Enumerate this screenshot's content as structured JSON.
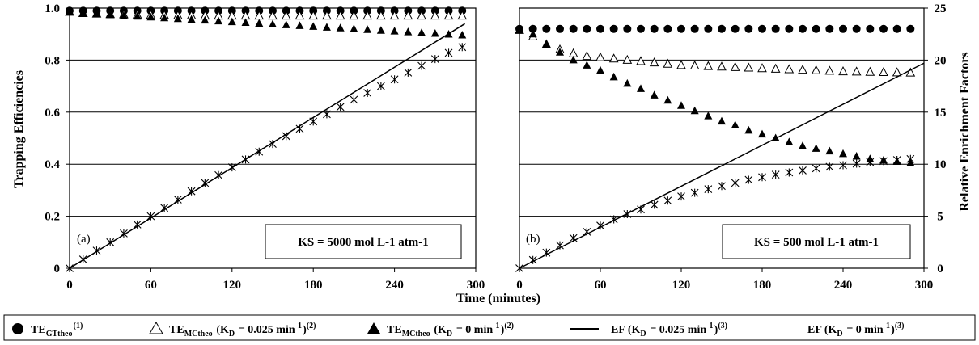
{
  "xlabel": "Time (minutes)",
  "ylabel_left": "Trapping Efficiencies",
  "ylabel_right": "Relative Enrichment Factors",
  "legend": [
    {
      "symbol": "filled-circle",
      "main": "TE",
      "sub": "GTtheo",
      "sup": "(1)",
      "rest": ""
    },
    {
      "symbol": "open-triangle",
      "main": "TE",
      "sub": "MCtheo",
      "rest": " (K",
      "sub2": "D",
      "rest2": " = 0.025 min",
      "sup2": "-1",
      "rest3": ")",
      "sup": "(2)"
    },
    {
      "symbol": "filled-triangle",
      "main": "TE",
      "sub": "MCtheo",
      "rest": " (K",
      "sub2": "D",
      "rest2": " = 0 min",
      "sup2": "-1",
      "rest3": ")",
      "sup": "(2)"
    },
    {
      "symbol": "line",
      "main": "EF (K",
      "sub": "D",
      "rest": " = 0.025 min",
      "sup2": "-1",
      "rest3": ")",
      "sup": "(3)"
    },
    {
      "symbol": "star",
      "main": "EF (K",
      "sub": "D",
      "rest": " = 0 min",
      "sup2": "-1",
      "rest3": ")",
      "sup": "(3)"
    }
  ],
  "chart_data": [
    {
      "type": "scatter",
      "panel_label": "(a)",
      "annotation": "KS = 5000 mol L-1 atm-1",
      "xlim": [
        0,
        300
      ],
      "xticks": [
        0,
        60,
        120,
        180,
        240,
        300
      ],
      "ylim": [
        0,
        1.0
      ],
      "yticks": [
        0,
        0.2,
        0.4,
        0.6,
        0.8,
        1.0
      ],
      "ytick_labels": [
        "0",
        "0.2",
        "0.4",
        "0.6",
        "0.8",
        "1.0"
      ],
      "y2lim": [
        0,
        25
      ],
      "grid": "horizontal",
      "x": [
        0,
        10,
        20,
        30,
        40,
        50,
        60,
        70,
        80,
        90,
        100,
        110,
        120,
        130,
        140,
        150,
        160,
        170,
        180,
        190,
        200,
        210,
        220,
        230,
        240,
        250,
        260,
        270,
        280,
        290
      ],
      "series": [
        {
          "name": "TE GTtheo",
          "marker": "filled-circle",
          "axis": "left",
          "values": [
            0.99,
            0.99,
            0.99,
            0.99,
            0.99,
            0.99,
            0.99,
            0.99,
            0.99,
            0.99,
            0.99,
            0.99,
            0.99,
            0.99,
            0.99,
            0.99,
            0.99,
            0.99,
            0.99,
            0.99,
            0.99,
            0.99,
            0.99,
            0.99,
            0.99,
            0.99,
            0.99,
            0.99,
            0.99,
            0.99
          ]
        },
        {
          "name": "TE MCtheo (KD = 0.025)",
          "marker": "open-triangle",
          "axis": "left",
          "values": [
            0.985,
            0.98,
            0.978,
            0.976,
            0.975,
            0.974,
            0.973,
            0.972,
            0.971,
            0.971,
            0.97,
            0.97,
            0.97,
            0.97,
            0.97,
            0.97,
            0.97,
            0.97,
            0.97,
            0.97,
            0.97,
            0.97,
            0.97,
            0.97,
            0.97,
            0.97,
            0.97,
            0.97,
            0.97,
            0.97
          ]
        },
        {
          "name": "TE MCtheo (KD = 0)",
          "marker": "filled-triangle",
          "axis": "left",
          "values": [
            0.985,
            0.98,
            0.977,
            0.974,
            0.971,
            0.968,
            0.965,
            0.962,
            0.959,
            0.956,
            0.953,
            0.95,
            0.947,
            0.944,
            0.941,
            0.938,
            0.935,
            0.932,
            0.929,
            0.926,
            0.923,
            0.92,
            0.917,
            0.914,
            0.911,
            0.908,
            0.905,
            0.902,
            0.899,
            0.896
          ]
        },
        {
          "name": "EF (KD = 0.025)",
          "marker": "line",
          "axis": "right",
          "x": [
            0,
            292
          ],
          "values": [
            0,
            23.5
          ]
        },
        {
          "name": "EF (KD = 0)",
          "marker": "star",
          "axis": "right",
          "values": [
            0,
            0.85,
            1.7,
            2.5,
            3.35,
            4.2,
            5.0,
            5.8,
            6.6,
            7.4,
            8.2,
            8.95,
            9.7,
            10.45,
            11.2,
            11.95,
            12.7,
            13.4,
            14.1,
            14.8,
            15.5,
            16.2,
            16.85,
            17.5,
            18.15,
            18.8,
            19.45,
            20.1,
            20.7,
            21.25
          ]
        }
      ]
    },
    {
      "type": "scatter",
      "panel_label": "(b)",
      "annotation": "KS = 500 mol L-1 atm-1",
      "xlim": [
        0,
        300
      ],
      "xticks": [
        0,
        60,
        120,
        180,
        240,
        300
      ],
      "ylim": [
        0,
        1.0
      ],
      "y2lim": [
        0,
        25
      ],
      "y2ticks": [
        0,
        5,
        10,
        15,
        20,
        25
      ],
      "grid": "horizontal",
      "x": [
        0,
        10,
        20,
        30,
        40,
        50,
        60,
        70,
        80,
        90,
        100,
        110,
        120,
        130,
        140,
        150,
        160,
        170,
        180,
        190,
        200,
        210,
        220,
        230,
        240,
        250,
        260,
        270,
        280,
        290
      ],
      "series": [
        {
          "name": "TE GTtheo",
          "marker": "filled-circle",
          "axis": "left",
          "values": [
            0.92,
            0.92,
            0.92,
            0.92,
            0.92,
            0.92,
            0.92,
            0.92,
            0.92,
            0.92,
            0.92,
            0.92,
            0.92,
            0.92,
            0.92,
            0.92,
            0.92,
            0.92,
            0.92,
            0.92,
            0.92,
            0.92,
            0.92,
            0.92,
            0.92,
            0.92,
            0.92,
            0.92,
            0.92,
            0.92
          ]
        },
        {
          "name": "TE MCtheo (KD = 0.025)",
          "marker": "open-triangle",
          "axis": "left",
          "values": [
            0.915,
            0.89,
            0.86,
            0.84,
            0.825,
            0.815,
            0.81,
            0.805,
            0.8,
            0.795,
            0.79,
            0.785,
            0.78,
            0.778,
            0.776,
            0.774,
            0.772,
            0.77,
            0.768,
            0.766,
            0.764,
            0.762,
            0.76,
            0.758,
            0.756,
            0.755,
            0.754,
            0.753,
            0.752,
            0.751
          ]
        },
        {
          "name": "TE MCtheo (KD = 0)",
          "marker": "filled-triangle",
          "axis": "left",
          "values": [
            0.915,
            0.9,
            0.86,
            0.83,
            0.8,
            0.78,
            0.76,
            0.735,
            0.71,
            0.69,
            0.665,
            0.645,
            0.625,
            0.605,
            0.585,
            0.565,
            0.55,
            0.53,
            0.515,
            0.5,
            0.485,
            0.47,
            0.46,
            0.45,
            0.44,
            0.43,
            0.42,
            0.415,
            0.41,
            0.405
          ]
        },
        {
          "name": "EF (KD = 0.025)",
          "marker": "line",
          "axis": "right",
          "x": [
            0,
            300
          ],
          "values": [
            0,
            19.7
          ]
        },
        {
          "name": "EF (KD = 0)",
          "marker": "star",
          "axis": "right",
          "values": [
            0,
            0.8,
            1.5,
            2.2,
            2.9,
            3.5,
            4.1,
            4.7,
            5.2,
            5.65,
            6.1,
            6.5,
            6.9,
            7.25,
            7.6,
            7.9,
            8.2,
            8.5,
            8.75,
            9.0,
            9.2,
            9.4,
            9.6,
            9.75,
            9.9,
            10.05,
            10.2,
            10.3,
            10.4,
            10.5
          ]
        }
      ]
    }
  ]
}
